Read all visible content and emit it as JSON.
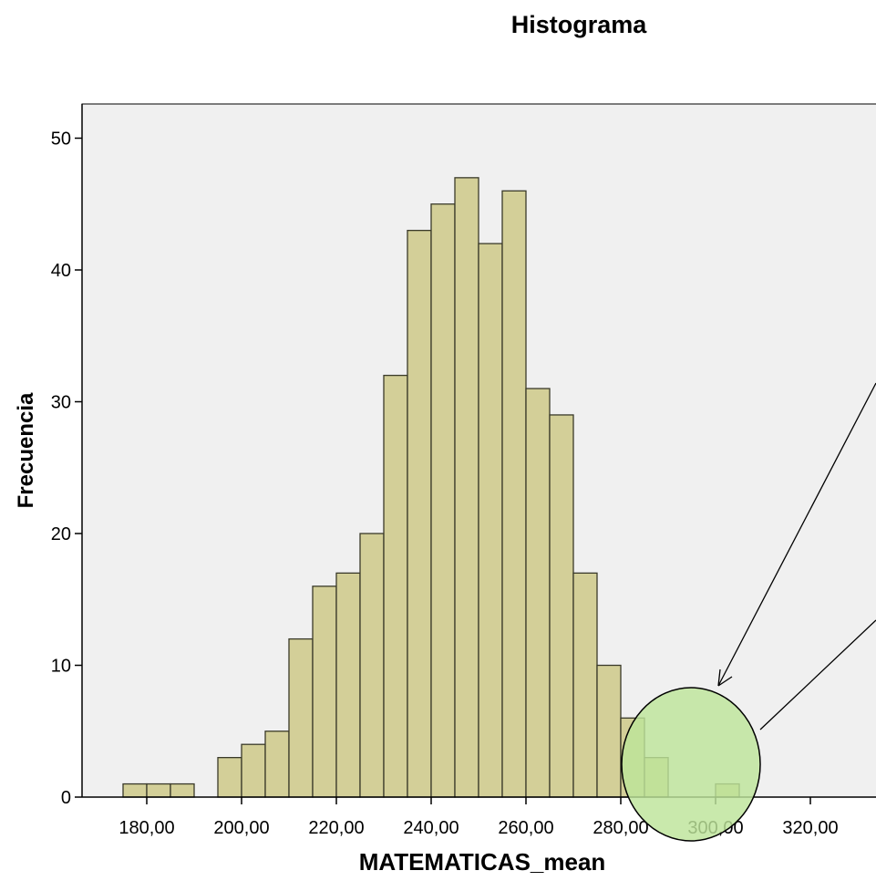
{
  "chart_data": {
    "type": "bar",
    "title": "Histograma",
    "xlabel": "MATEMATICAS_mean",
    "ylabel": "Frecuencia",
    "bin_width": 5,
    "bins": [
      {
        "start": 175,
        "end": 180,
        "count": 1
      },
      {
        "start": 180,
        "end": 185,
        "count": 1
      },
      {
        "start": 185,
        "end": 190,
        "count": 1
      },
      {
        "start": 195,
        "end": 200,
        "count": 3
      },
      {
        "start": 200,
        "end": 205,
        "count": 4
      },
      {
        "start": 205,
        "end": 210,
        "count": 5
      },
      {
        "start": 210,
        "end": 215,
        "count": 12
      },
      {
        "start": 215,
        "end": 220,
        "count": 16
      },
      {
        "start": 220,
        "end": 225,
        "count": 17
      },
      {
        "start": 225,
        "end": 230,
        "count": 20
      },
      {
        "start": 230,
        "end": 235,
        "count": 32
      },
      {
        "start": 235,
        "end": 240,
        "count": 43
      },
      {
        "start": 240,
        "end": 245,
        "count": 45
      },
      {
        "start": 245,
        "end": 250,
        "count": 47
      },
      {
        "start": 250,
        "end": 255,
        "count": 42
      },
      {
        "start": 255,
        "end": 260,
        "count": 46
      },
      {
        "start": 260,
        "end": 265,
        "count": 31
      },
      {
        "start": 265,
        "end": 270,
        "count": 29
      },
      {
        "start": 270,
        "end": 275,
        "count": 17
      },
      {
        "start": 275,
        "end": 280,
        "count": 10
      },
      {
        "start": 280,
        "end": 285,
        "count": 6
      },
      {
        "start": 285,
        "end": 290,
        "count": 3
      },
      {
        "start": 300,
        "end": 305,
        "count": 1
      }
    ],
    "xticks": [
      "180,00",
      "200,00",
      "220,00",
      "240,00",
      "260,00",
      "280,00",
      "300,00",
      "320,00"
    ],
    "xtick_values": [
      180,
      200,
      220,
      240,
      260,
      280,
      300,
      320
    ],
    "yticks": [
      0,
      10,
      20,
      30,
      40,
      50
    ],
    "ylim": [
      0,
      52.6
    ],
    "xlim": [
      164.5,
      342
    ],
    "grid": false,
    "colors": {
      "bar_fill": "#d3cf98",
      "bar_stroke": "#3a3a2a",
      "plot_background": "#f0f0f0",
      "highlight_fill": "#bde49a",
      "highlight_stroke": "#000000"
    },
    "annotations": [
      {
        "type": "ellipse",
        "label": "highlight-outliers"
      },
      {
        "type": "arrow",
        "label": "pointer-arrow-to-outliers"
      },
      {
        "type": "line",
        "label": "pointer-line-to-outliers"
      }
    ]
  }
}
